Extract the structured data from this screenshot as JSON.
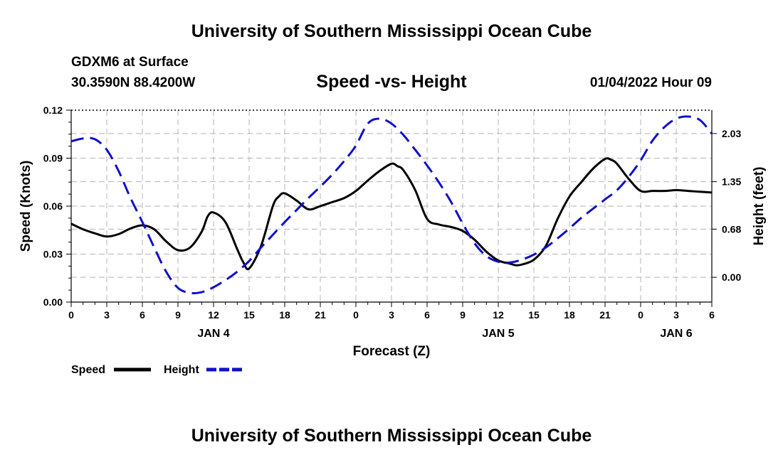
{
  "header": {
    "title": "University of Southern Mississippi Ocean Cube",
    "station": "GDXM6 at Surface",
    "coords": "30.3590N  88.4200W",
    "subtitle": "Speed -vs- Height",
    "datetime": "01/04/2022 Hour 09"
  },
  "footer": {
    "title": "University of Southern Mississippi Ocean Cube"
  },
  "chart_data": {
    "type": "line",
    "xlabel": "Forecast (Z)",
    "ylabel_left": "Speed (Knots)",
    "ylabel_right": "Height (feet)",
    "x_range": [
      0,
      54
    ],
    "x_ticks": [
      {
        "x": 0,
        "label": "0"
      },
      {
        "x": 3,
        "label": "3"
      },
      {
        "x": 6,
        "label": "6"
      },
      {
        "x": 9,
        "label": "9"
      },
      {
        "x": 12,
        "label": "12"
      },
      {
        "x": 15,
        "label": "15"
      },
      {
        "x": 18,
        "label": "18"
      },
      {
        "x": 21,
        "label": "21"
      },
      {
        "x": 24,
        "label": "0"
      },
      {
        "x": 27,
        "label": "3"
      },
      {
        "x": 30,
        "label": "6"
      },
      {
        "x": 33,
        "label": "9"
      },
      {
        "x": 36,
        "label": "12"
      },
      {
        "x": 39,
        "label": "15"
      },
      {
        "x": 42,
        "label": "18"
      },
      {
        "x": 45,
        "label": "21"
      },
      {
        "x": 48,
        "label": "0"
      },
      {
        "x": 51,
        "label": "3"
      },
      {
        "x": 54,
        "label": "6"
      }
    ],
    "day_labels": [
      {
        "x": 12,
        "label": "JAN 4"
      },
      {
        "x": 36,
        "label": "JAN 5"
      },
      {
        "x": 51,
        "label": "JAN 6"
      }
    ],
    "y_left": {
      "min": 0,
      "max": 0.12,
      "ticks": [
        "0.00",
        "0.03",
        "0.06",
        "0.09",
        "0.12"
      ]
    },
    "y_right": {
      "min": -0.35,
      "max": 2.36,
      "ticks": [
        "0.00",
        "0.68",
        "1.35",
        "2.03"
      ]
    },
    "series": [
      {
        "name": "Speed",
        "axis": "left",
        "color": "#000000",
        "dash": "solid",
        "x": [
          0,
          1,
          2,
          3,
          4,
          5,
          6,
          7,
          8,
          9,
          10,
          11,
          11.5,
          12,
          13,
          14,
          14.5,
          15,
          16,
          17,
          17.5,
          18,
          19,
          20,
          21,
          22,
          23,
          24,
          25,
          26,
          27,
          27.5,
          28,
          29,
          30,
          31,
          32,
          33,
          34,
          35,
          36,
          37,
          37.5,
          38,
          39,
          40,
          41,
          42,
          43,
          44,
          45,
          45.5,
          46,
          47,
          48,
          49,
          50,
          51,
          52,
          53,
          54
        ],
        "values": [
          0.049,
          0.0455,
          0.043,
          0.041,
          0.0425,
          0.046,
          0.048,
          0.0455,
          0.038,
          0.0325,
          0.034,
          0.044,
          0.0535,
          0.056,
          0.05,
          0.033,
          0.025,
          0.021,
          0.035,
          0.06,
          0.066,
          0.068,
          0.0635,
          0.058,
          0.06,
          0.0625,
          0.065,
          0.0695,
          0.076,
          0.082,
          0.0865,
          0.085,
          0.0825,
          0.07,
          0.052,
          0.0485,
          0.047,
          0.0445,
          0.039,
          0.0315,
          0.026,
          0.024,
          0.023,
          0.0235,
          0.0265,
          0.035,
          0.052,
          0.066,
          0.075,
          0.0835,
          0.0895,
          0.089,
          0.0865,
          0.077,
          0.0695,
          0.0695,
          0.0695,
          0.07,
          0.0695,
          0.069,
          0.0685
        ]
      },
      {
        "name": "Height",
        "axis": "right",
        "color": "#1010c8",
        "dash": "dashed",
        "x": [
          0,
          1,
          2,
          3,
          4,
          5,
          6,
          7,
          8,
          9,
          10,
          11,
          12,
          13,
          14,
          15,
          16,
          17,
          18,
          19,
          20,
          21,
          22,
          23,
          24,
          25,
          26,
          27,
          28,
          29,
          30,
          31,
          32,
          33,
          34,
          35,
          36,
          37,
          38,
          39,
          40,
          41,
          42,
          43,
          44,
          45,
          46,
          47,
          48,
          49,
          50,
          51,
          52,
          53,
          54
        ],
        "values": [
          1.92,
          1.96,
          1.95,
          1.8,
          1.5,
          1.12,
          0.78,
          0.42,
          0.08,
          -0.15,
          -0.22,
          -0.21,
          -0.14,
          -0.04,
          0.08,
          0.23,
          0.42,
          0.6,
          0.78,
          0.95,
          1.12,
          1.28,
          1.45,
          1.64,
          1.86,
          2.17,
          2.24,
          2.17,
          2.01,
          1.8,
          1.58,
          1.34,
          1.07,
          0.76,
          0.48,
          0.3,
          0.22,
          0.21,
          0.25,
          0.32,
          0.42,
          0.55,
          0.69,
          0.84,
          0.97,
          1.1,
          1.23,
          1.42,
          1.65,
          1.93,
          2.12,
          2.24,
          2.27,
          2.22,
          2.03
        ]
      }
    ],
    "legend": [
      {
        "label": "Speed",
        "series": "Speed"
      },
      {
        "label": "Height",
        "series": "Height"
      }
    ],
    "grid": true
  }
}
